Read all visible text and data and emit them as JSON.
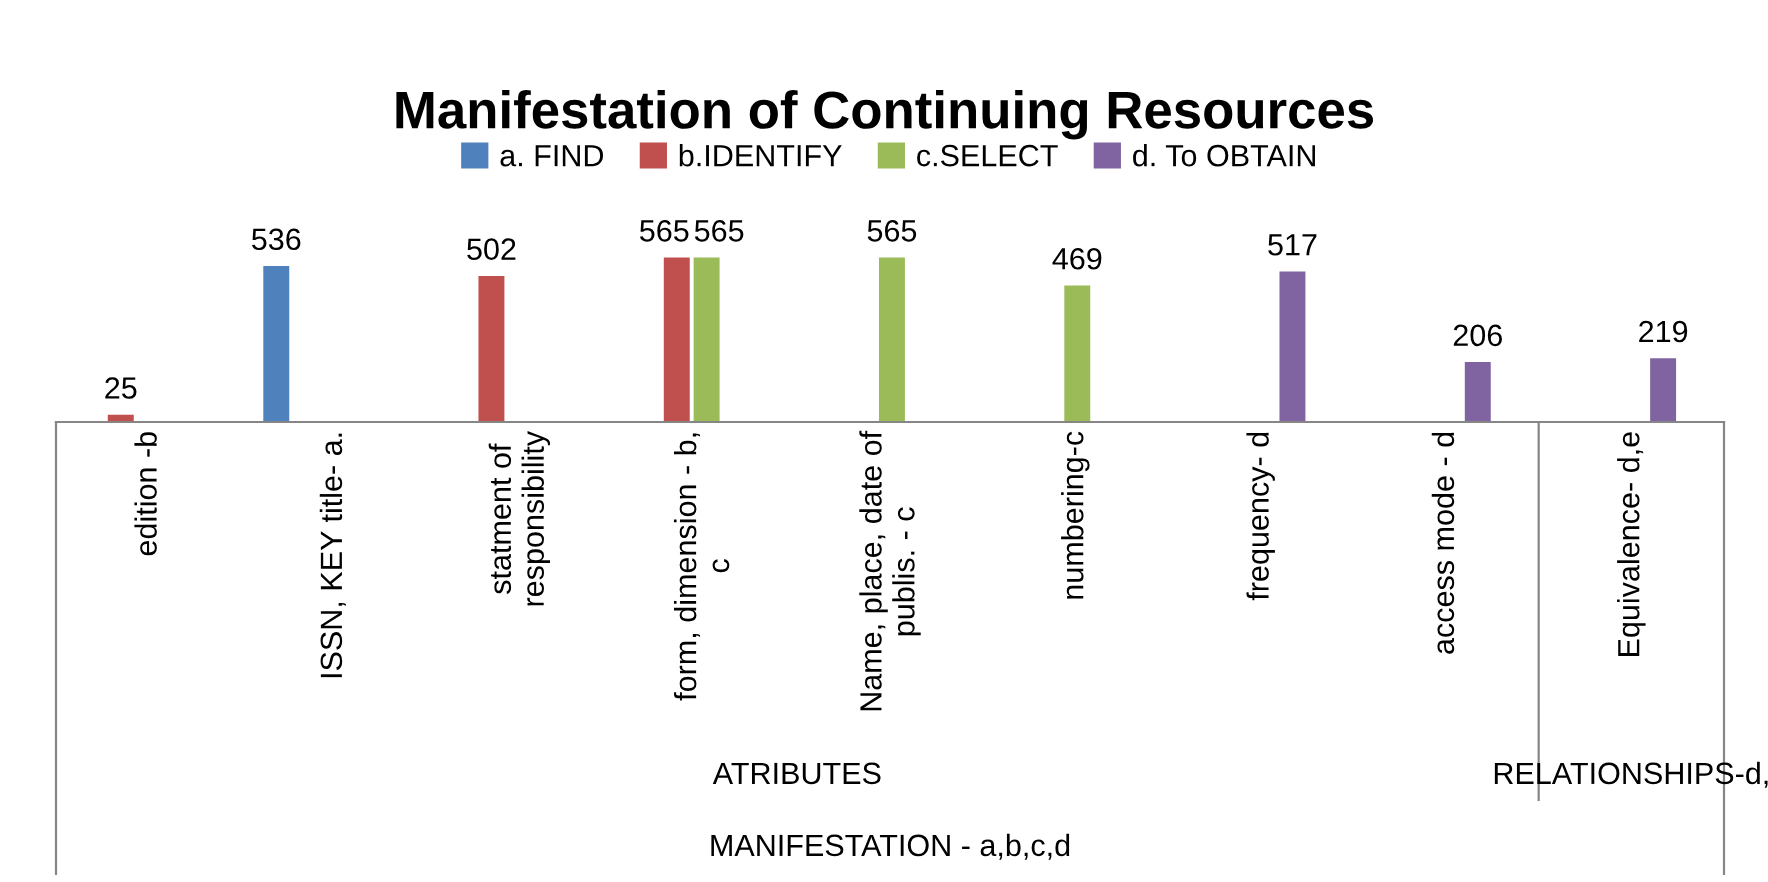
{
  "chart_data": {
    "type": "bar",
    "title": "Manifestation of Continuing Resources",
    "categories": [
      "edition -b",
      "ISSN, KEY title- a.",
      "statment of\nresponsibility",
      "form, dimension - b,\nc",
      "Name, place, date of\npublis. - c",
      "numbering-c",
      "frequency- d",
      "access mode - d",
      "Equivalence- d,e"
    ],
    "series": [
      {
        "name": "a. FIND",
        "color": "#4f81bd",
        "values": [
          null,
          536,
          null,
          null,
          null,
          null,
          null,
          null,
          null
        ]
      },
      {
        "name": "b.IDENTIFY",
        "color": "#c0504d",
        "values": [
          25,
          null,
          502,
          565,
          null,
          null,
          null,
          null,
          null
        ]
      },
      {
        "name": "c.SELECT",
        "color": "#9bbb59",
        "values": [
          null,
          null,
          null,
          565,
          565,
          469,
          null,
          null,
          null
        ]
      },
      {
        "name": "d. To OBTAIN",
        "color": "#8064a2",
        "values": [
          null,
          null,
          null,
          null,
          null,
          null,
          517,
          206,
          219
        ]
      }
    ],
    "data_labels": true,
    "legend": "top",
    "annotations": [
      "ATRIBUTES",
      "RELATIONSHIPS-d,",
      "MANIFESTATION - a,b,c,d"
    ]
  }
}
